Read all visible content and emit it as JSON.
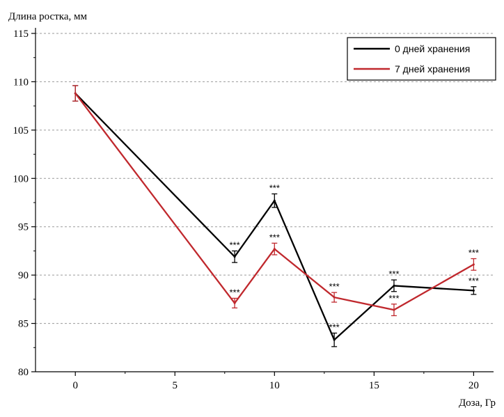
{
  "chart_data": {
    "type": "line",
    "ylabel": "Длина ростка, мм",
    "xlabel": "Доза, Гр",
    "xlim": [
      -2,
      21
    ],
    "ylim": [
      80,
      115
    ],
    "xticks": [
      "0",
      "5",
      "10",
      "15",
      "20"
    ],
    "xtick_values": [
      0,
      5,
      10,
      15,
      20
    ],
    "yticks": [
      "80",
      "85",
      "90",
      "95",
      "100",
      "105",
      "110",
      "115"
    ],
    "ytick_values": [
      80,
      85,
      90,
      95,
      100,
      105,
      110,
      115
    ],
    "grid": "horizontal dashed",
    "legend_position": "top-right",
    "series": [
      {
        "name": "0 дней хранения",
        "color": "#000000",
        "x": [
          0,
          8,
          10,
          13,
          16,
          20
        ],
        "y": [
          108.8,
          91.9,
          97.7,
          83.3,
          88.9,
          88.4
        ],
        "err": [
          0.8,
          0.6,
          0.7,
          0.7,
          0.6,
          0.4
        ],
        "significance": [
          "",
          "***",
          "***",
          "***",
          "***",
          "***"
        ]
      },
      {
        "name": "7 дней хранения",
        "color": "#c0282d",
        "x": [
          0,
          8,
          10,
          13,
          16,
          20
        ],
        "y": [
          108.8,
          87.1,
          92.7,
          87.7,
          86.4,
          91.1
        ],
        "err": [
          0.8,
          0.5,
          0.6,
          0.5,
          0.6,
          0.6
        ],
        "significance": [
          "",
          "***",
          "***",
          "***",
          "***",
          "***"
        ]
      }
    ]
  }
}
